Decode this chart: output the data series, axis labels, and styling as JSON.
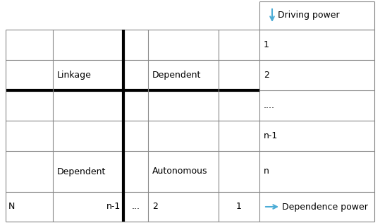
{
  "fig_width": 5.39,
  "fig_height": 3.16,
  "dpi": 100,
  "grid_color": "#888888",
  "thick_line_color": "#000000",
  "thin_lw": 0.8,
  "thick_lw": 3.0,
  "labels": {
    "linkage": "Linkage",
    "dependent_upper": "Dependent",
    "dependent_lower": "Dependent",
    "autonomous": "Autonomous",
    "driving_power": "Driving power",
    "dependence_power": "Dependence power",
    "row_labels": [
      "1",
      "2",
      "....",
      "n-1",
      "n"
    ],
    "col_labels_bottom": [
      "N",
      "n-1",
      "...",
      "2",
      "1"
    ]
  },
  "arrow_color": "#4bacd6",
  "font_size": 9
}
